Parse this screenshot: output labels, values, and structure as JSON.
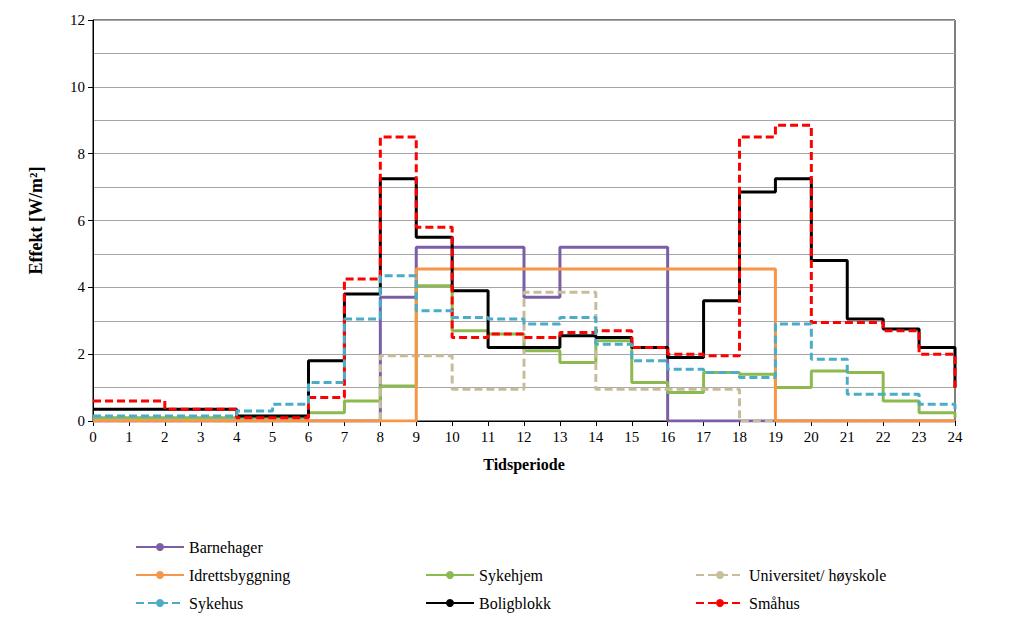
{
  "chart_data": {
    "type": "step",
    "x_label": "Tidsperiode",
    "y_label": "Effekt [W/m²]",
    "x": [
      0,
      1,
      2,
      3,
      4,
      5,
      6,
      7,
      8,
      9,
      10,
      11,
      12,
      13,
      14,
      15,
      16,
      17,
      18,
      19,
      20,
      21,
      22,
      23,
      24
    ],
    "xlim": [
      0,
      24
    ],
    "xticks": [
      0,
      1,
      2,
      3,
      4,
      5,
      6,
      7,
      8,
      9,
      10,
      11,
      12,
      13,
      14,
      15,
      16,
      17,
      18,
      19,
      20,
      21,
      22,
      23,
      24
    ],
    "ylim": [
      0,
      12
    ],
    "yticks": [
      0,
      2,
      4,
      6,
      8,
      10,
      12
    ],
    "grid": true,
    "legend": "bottom",
    "series": [
      {
        "name": "Barnehager",
        "color": "#7b5ea7",
        "line_style": "solid",
        "values": [
          0,
          0,
          0,
          0,
          0,
          0,
          0,
          0,
          3.7,
          5.2,
          5.2,
          5.2,
          3.7,
          5.2,
          5.2,
          5.2,
          0,
          0,
          0,
          0,
          0,
          0,
          0,
          0,
          0
        ]
      },
      {
        "name": "Sykehjem",
        "color": "#8cba4e",
        "line_style": "solid",
        "values": [
          0.1,
          0.1,
          0.1,
          0.1,
          0.1,
          0.1,
          0.25,
          0.6,
          1.05,
          4.05,
          2.7,
          2.6,
          2.1,
          1.75,
          2.4,
          1.15,
          0.85,
          1.45,
          1.4,
          1.0,
          1.5,
          1.45,
          0.6,
          0.25,
          0.1
        ]
      },
      {
        "name": "Universitet/ høyskole",
        "color": "#c8bc9a",
        "line_style": "dashed",
        "values": [
          0,
          0,
          0,
          0,
          0,
          0,
          0,
          0,
          1.95,
          1.95,
          0.95,
          0.95,
          3.85,
          3.85,
          0.95,
          0.95,
          0.95,
          0.95,
          0,
          0,
          0,
          0,
          0,
          0,
          0
        ]
      },
      {
        "name": "Idrettsbyggning",
        "color": "#f79646",
        "line_style": "solid",
        "values": [
          0,
          0,
          0,
          0,
          0,
          0,
          0,
          0,
          0,
          4.55,
          4.55,
          4.55,
          4.55,
          4.55,
          4.55,
          4.55,
          4.55,
          4.55,
          4.55,
          0,
          0,
          0,
          0,
          0,
          0
        ]
      },
      {
        "name": "Boligblokk",
        "color": "#000000",
        "line_style": "solid",
        "values": [
          0.35,
          0.35,
          0.35,
          0.35,
          0.15,
          0.15,
          1.8,
          3.8,
          7.25,
          5.5,
          3.9,
          2.2,
          2.2,
          2.55,
          2.5,
          2.2,
          1.9,
          3.6,
          6.85,
          7.25,
          4.8,
          3.05,
          2.75,
          2.2,
          1.0
        ]
      },
      {
        "name": "Småhus",
        "color": "#ff0000",
        "line_style": "dashed",
        "values": [
          0.6,
          0.6,
          0.35,
          0.35,
          0.1,
          0.1,
          0.7,
          4.25,
          8.5,
          5.8,
          2.5,
          2.6,
          2.5,
          2.65,
          2.7,
          2.2,
          2.0,
          1.95,
          8.5,
          8.85,
          2.95,
          2.95,
          2.7,
          2.0,
          1.0
        ]
      },
      {
        "name": "Sykehus",
        "color": "#4bacc6",
        "line_style": "dashed",
        "values": [
          0.15,
          0.15,
          0.15,
          0.15,
          0.3,
          0.5,
          1.15,
          3.05,
          4.35,
          3.3,
          3.1,
          3.05,
          2.9,
          3.1,
          2.3,
          1.8,
          1.55,
          1.45,
          1.3,
          2.9,
          1.85,
          0.8,
          0.8,
          0.5,
          0.3
        ]
      }
    ]
  }
}
